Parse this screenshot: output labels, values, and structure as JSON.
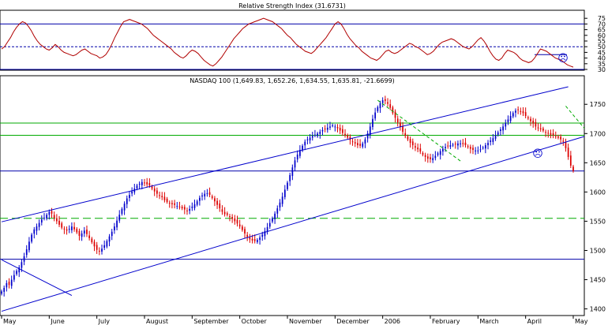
{
  "chart_data": [
    {
      "type": "line",
      "title": "Relative Strength Index (31.6731)",
      "ylim": [
        30,
        80
      ],
      "yticks": [
        30,
        35,
        40,
        45,
        50,
        55,
        60,
        65,
        70,
        75
      ],
      "reference_lines": [
        30,
        50,
        70
      ],
      "series": [
        {
          "values": [
            48,
            50,
            54,
            58,
            63,
            67,
            70,
            72,
            71,
            68,
            64,
            59,
            55,
            52,
            50,
            48,
            47,
            49,
            52,
            50,
            47,
            45,
            44,
            43,
            42,
            43,
            45,
            47,
            48,
            46,
            44,
            43,
            42,
            40,
            41,
            43,
            47,
            52,
            58,
            63,
            68,
            72,
            73,
            74,
            73,
            72,
            71,
            70,
            68,
            66,
            63,
            60,
            58,
            56,
            54,
            52,
            50,
            48,
            45,
            43,
            41,
            40,
            42,
            45,
            47,
            46,
            44,
            41,
            38,
            36,
            34,
            33,
            35,
            38,
            41,
            45,
            49,
            53,
            57,
            60,
            63,
            66,
            68,
            70,
            71,
            72,
            73,
            74,
            75,
            74,
            73,
            72,
            70,
            68,
            66,
            63,
            60,
            58,
            55,
            52,
            50,
            48,
            46,
            45,
            44,
            46,
            49,
            52,
            55,
            58,
            62,
            66,
            70,
            72,
            70,
            66,
            61,
            57,
            54,
            51,
            49,
            46,
            44,
            42,
            40,
            39,
            38,
            40,
            43,
            46,
            47,
            45,
            44,
            45,
            47,
            49,
            51,
            53,
            52,
            50,
            49,
            47,
            45,
            43,
            44,
            46,
            49,
            52,
            54,
            55,
            56,
            57,
            56,
            54,
            52,
            50,
            49,
            48,
            50,
            53,
            56,
            58,
            55,
            51,
            46,
            42,
            39,
            38,
            40,
            44,
            47,
            46,
            45,
            43,
            40,
            38,
            37,
            36,
            37,
            40,
            44,
            48,
            47,
            46,
            44,
            42,
            40,
            39,
            38,
            36,
            34,
            33,
            32
          ]
        }
      ],
      "annotations": [
        "☹"
      ]
    },
    {
      "type": "candlestick",
      "title": "NASDAQ 100 (1,649.83, 1,652.26, 1,634.55, 1,635.81, -21.6699)",
      "ylim": [
        1390,
        1780
      ],
      "yticks": [
        1400,
        1450,
        1500,
        1550,
        1600,
        1650,
        1700,
        1750
      ],
      "x_tick_labels": [
        "May",
        "June",
        "July",
        "August",
        "September",
        "October",
        "November",
        "December",
        "2006",
        "February",
        "March",
        "April",
        "May"
      ],
      "series": [
        {
          "closes": [
            1430,
            1436,
            1444,
            1441,
            1450,
            1458,
            1465,
            1471,
            1480,
            1490,
            1502,
            1515,
            1527,
            1536,
            1541,
            1547,
            1553,
            1556,
            1561,
            1566,
            1563,
            1556,
            1550,
            1544,
            1539,
            1536,
            1534,
            1537,
            1541,
            1536,
            1531,
            1525,
            1529,
            1534,
            1528,
            1521,
            1514,
            1507,
            1501,
            1498,
            1503,
            1509,
            1516,
            1524,
            1532,
            1541,
            1551,
            1561,
            1571,
            1580,
            1589,
            1595,
            1601,
            1606,
            1611,
            1614,
            1617,
            1616,
            1613,
            1611,
            1606,
            1601,
            1597,
            1594,
            1591,
            1586,
            1583,
            1581,
            1579,
            1578,
            1576,
            1574,
            1572,
            1570,
            1568,
            1571,
            1575,
            1579,
            1584,
            1590,
            1594,
            1597,
            1598,
            1595,
            1590,
            1584,
            1578,
            1572,
            1566,
            1562,
            1561,
            1558,
            1554,
            1550,
            1546,
            1541,
            1535,
            1529,
            1523,
            1519,
            1517,
            1516,
            1518,
            1522,
            1527,
            1533,
            1540,
            1547,
            1555,
            1563,
            1572,
            1582,
            1592,
            1604,
            1616,
            1629,
            1642,
            1654,
            1664,
            1672,
            1679,
            1686,
            1690,
            1693,
            1696,
            1698,
            1700,
            1703,
            1706,
            1708,
            1710,
            1712,
            1714,
            1712,
            1709,
            1705,
            1701,
            1697,
            1693,
            1689,
            1686,
            1683,
            1680,
            1679,
            1683,
            1690,
            1700,
            1712,
            1725,
            1736,
            1745,
            1752,
            1757,
            1756,
            1751,
            1744,
            1735,
            1727,
            1719,
            1711,
            1703,
            1696,
            1690,
            1684,
            1680,
            1676,
            1673,
            1669,
            1664,
            1660,
            1657,
            1656,
            1658,
            1662,
            1666,
            1670,
            1674,
            1677,
            1679,
            1680,
            1681,
            1682,
            1683,
            1683,
            1682,
            1680,
            1677,
            1674,
            1672,
            1671,
            1671,
            1673,
            1676,
            1680,
            1684,
            1688,
            1692,
            1697,
            1702,
            1707,
            1712,
            1718,
            1724,
            1730,
            1735,
            1739,
            1740,
            1738,
            1735,
            1730,
            1726,
            1721,
            1717,
            1712,
            1709,
            1707,
            1705,
            1702,
            1700,
            1698,
            1697,
            1695,
            1693,
            1690,
            1686,
            1675,
            1660,
            1645,
            1636
          ]
        }
      ],
      "trendlines": [
        {
          "from": [
            0,
            1549
          ],
          "to": [
            226,
            1780
          ]
        },
        {
          "from": [
            0,
            1396
          ],
          "to": [
            285,
            1695
          ]
        },
        {
          "from": [
            0,
            1484
          ],
          "to": [
            28,
            1423
          ]
        },
        {
          "from": [
            150,
            1757
          ],
          "to": [
            183,
            1653
          ]
        },
        {
          "from": [
            225,
            1747
          ],
          "to": [
            260,
            1709
          ]
        }
      ],
      "horizontal_lines": [
        1485,
        1555,
        1636,
        1697,
        1718
      ],
      "annotations": [
        "☹"
      ]
    }
  ]
}
